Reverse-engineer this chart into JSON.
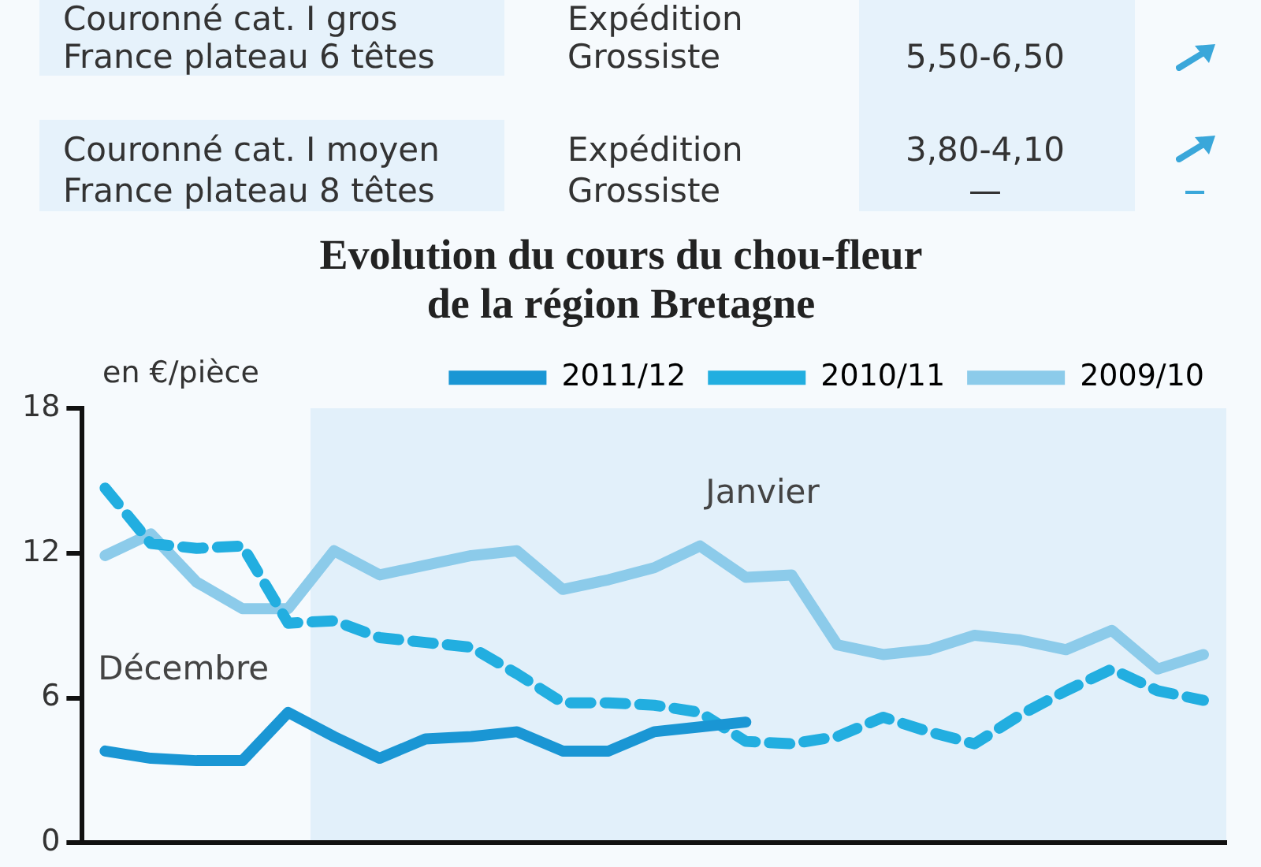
{
  "chart_data": {
    "type": "line",
    "title": "Evolution du cours du chou-fleur de la région Bretagne",
    "ylabel": "en €/pièce",
    "annotations": [
      "Couronné cat. I gros",
      "Expédition",
      "France plateau 6 têtes",
      "Grossiste",
      "5,50-6,50",
      "Couronné cat. I moyen",
      "Expédition",
      "3,80-4,10",
      "France plateau 8 têtes",
      "Grossiste",
      "—",
      "Décembre",
      "Janvier"
    ],
    "categories": [
      null,
      null,
      null,
      null,
      null,
      null,
      null,
      null,
      null,
      null,
      null,
      null,
      null,
      null,
      null,
      null,
      null,
      null,
      null,
      null,
      null,
      null,
      null,
      null,
      null
    ],
    "ylim": [
      0,
      18
    ],
    "yticks": [
      0,
      6,
      12,
      18
    ],
    "tick_labels": "y",
    "grid": false,
    "legend": "top",
    "marker": "none",
    "series": [
      {
        "name": "2011/12",
        "color": "#1a96d4",
        "line_style": "solid",
        "values": [
          3.8,
          3.5,
          3.4,
          3.4,
          5.4,
          4.4,
          3.5,
          4.3,
          4.4,
          4.6,
          3.8,
          3.8,
          4.6,
          4.8,
          5.0,
          null,
          null,
          null,
          null,
          null,
          null,
          null,
          null,
          null,
          null
        ]
      },
      {
        "name": "2010/11",
        "color": "#22aee0",
        "line_style": "dashed",
        "values": [
          14.7,
          12.4,
          12.2,
          12.3,
          9.1,
          9.2,
          8.5,
          8.3,
          8.1,
          7.0,
          5.8,
          5.8,
          5.7,
          5.4,
          4.2,
          4.1,
          4.4,
          5.2,
          4.6,
          4.1,
          5.3,
          6.3,
          7.2,
          6.3,
          5.9
        ]
      },
      {
        "name": "2009/10",
        "color": "#8ccbea",
        "line_style": "solid",
        "values": [
          11.9,
          12.8,
          10.8,
          9.7,
          9.7,
          12.1,
          11.1,
          11.5,
          11.9,
          12.1,
          10.5,
          10.9,
          11.4,
          12.3,
          11.0,
          11.1,
          8.2,
          7.8,
          8.0,
          8.6,
          8.4,
          8.0,
          8.8,
          7.2,
          7.8
        ]
      }
    ]
  }
}
